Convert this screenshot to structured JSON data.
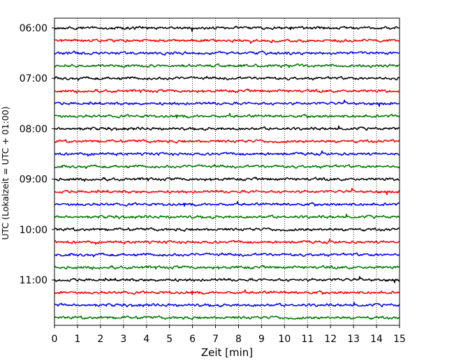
{
  "chart_data": {
    "type": "line",
    "title": "",
    "xlabel": "Zeit  [min]",
    "ylabel": "UTC (Lokalzeit = UTC + 01:00)",
    "xlim": [
      0,
      15
    ],
    "x_ticks": [
      "0",
      "1",
      "2",
      "3",
      "4",
      "5",
      "6",
      "7",
      "8",
      "9",
      "10",
      "11",
      "12",
      "13",
      "14",
      "15"
    ],
    "y_ticks": [
      "06:00",
      "07:00",
      "08:00",
      "09:00",
      "10:00",
      "11:00"
    ],
    "grid": "vertical dotted at each minute",
    "trace_interval_minutes": 15,
    "trace_colors": [
      "#000000",
      "#ff0000",
      "#0000ff",
      "#007700"
    ],
    "traces": [
      {
        "start": "06:00"
      },
      {
        "start": "06:15"
      },
      {
        "start": "06:30"
      },
      {
        "start": "06:45"
      },
      {
        "start": "07:00"
      },
      {
        "start": "07:15"
      },
      {
        "start": "07:30"
      },
      {
        "start": "07:45"
      },
      {
        "start": "08:00"
      },
      {
        "start": "08:15"
      },
      {
        "start": "08:30"
      },
      {
        "start": "08:45"
      },
      {
        "start": "09:00"
      },
      {
        "start": "09:15"
      },
      {
        "start": "09:30"
      },
      {
        "start": "09:45"
      },
      {
        "start": "10:00"
      },
      {
        "start": "10:15"
      },
      {
        "start": "10:30"
      },
      {
        "start": "10:45"
      },
      {
        "start": "11:00"
      },
      {
        "start": "11:15"
      },
      {
        "start": "11:30"
      },
      {
        "start": "11:45"
      }
    ]
  }
}
